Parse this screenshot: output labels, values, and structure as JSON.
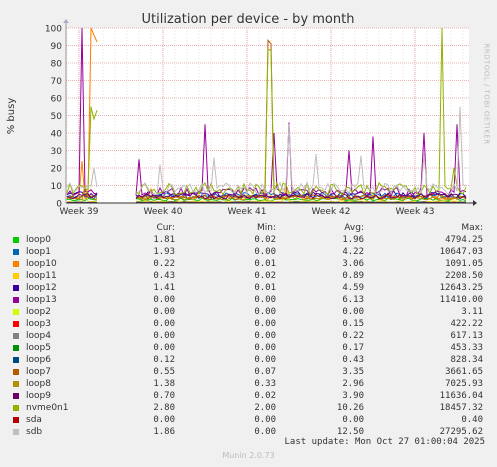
{
  "chart_data": {
    "type": "line",
    "title": "Utilization per device - by month",
    "ylabel": "% busy",
    "xlabel": "",
    "ylim": [
      0,
      100
    ],
    "yticks": [
      0,
      10,
      20,
      30,
      40,
      50,
      60,
      70,
      80,
      90,
      100
    ],
    "xtick_labels": [
      "Week 39",
      "Week 40",
      "Week 41",
      "Week 42",
      "Week 43"
    ],
    "grid": true,
    "legend_columns": [
      "Cur:",
      "Min:",
      "Avg:",
      "Max:"
    ],
    "series": [
      {
        "name": "loop0",
        "color": "#00cc00",
        "cur": "1.81",
        "min": "0.02",
        "avg": "1.96",
        "max": "4794.25"
      },
      {
        "name": "loop1",
        "color": "#0066b3",
        "cur": "1.93",
        "min": "0.00",
        "avg": "4.22",
        "max": "10647.03"
      },
      {
        "name": "loop10",
        "color": "#ff8000",
        "cur": "0.22",
        "min": "0.01",
        "avg": "3.06",
        "max": "1091.05"
      },
      {
        "name": "loop11",
        "color": "#ffcc00",
        "cur": "0.43",
        "min": "0.02",
        "avg": "0.89",
        "max": "2208.50"
      },
      {
        "name": "loop12",
        "color": "#330099",
        "cur": "1.41",
        "min": "0.01",
        "avg": "4.59",
        "max": "12643.25"
      },
      {
        "name": "loop13",
        "color": "#990099",
        "cur": "0.00",
        "min": "0.00",
        "avg": "6.13",
        "max": "11410.00"
      },
      {
        "name": "loop2",
        "color": "#ccff00",
        "cur": "0.00",
        "min": "0.00",
        "avg": "0.00",
        "max": "3.11"
      },
      {
        "name": "loop3",
        "color": "#ff0000",
        "cur": "0.00",
        "min": "0.00",
        "avg": "0.15",
        "max": "422.22"
      },
      {
        "name": "loop4",
        "color": "#808080",
        "cur": "0.00",
        "min": "0.00",
        "avg": "0.22",
        "max": "617.13"
      },
      {
        "name": "loop5",
        "color": "#008f00",
        "cur": "0.00",
        "min": "0.00",
        "avg": "0.17",
        "max": "453.33"
      },
      {
        "name": "loop6",
        "color": "#00487d",
        "cur": "0.12",
        "min": "0.00",
        "avg": "0.43",
        "max": "828.34"
      },
      {
        "name": "loop7",
        "color": "#b35a00",
        "cur": "0.55",
        "min": "0.07",
        "avg": "3.35",
        "max": "3661.65"
      },
      {
        "name": "loop8",
        "color": "#b38f00",
        "cur": "1.38",
        "min": "0.33",
        "avg": "2.96",
        "max": "7025.93"
      },
      {
        "name": "loop9",
        "color": "#6b006b",
        "cur": "0.70",
        "min": "0.02",
        "avg": "3.90",
        "max": "11636.04"
      },
      {
        "name": "nvme0n1",
        "color": "#8fb300",
        "cur": "2.80",
        "min": "2.00",
        "avg": "10.26",
        "max": "18457.32"
      },
      {
        "name": "sda",
        "color": "#b30000",
        "cur": "0.00",
        "min": "0.00",
        "avg": "0.00",
        "max": "0.40"
      },
      {
        "name": "sdb",
        "color": "#bebebe",
        "cur": "1.86",
        "min": "0.00",
        "avg": "12.50",
        "max": "27295.62"
      }
    ]
  },
  "footer": {
    "last_update": "Last update: Mon Oct 27 01:00:04 2025",
    "version": "Munin 2.0.73"
  },
  "watermark": "RRDTOOL / TOBI OETIKER"
}
